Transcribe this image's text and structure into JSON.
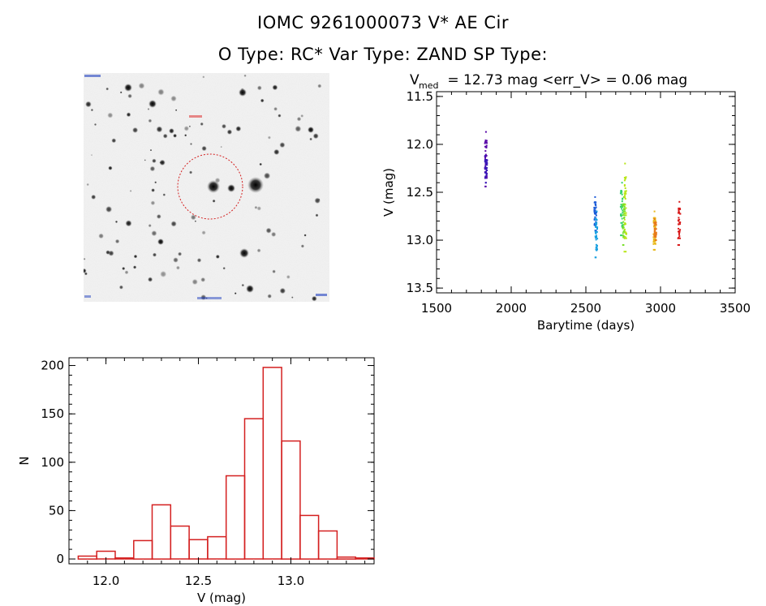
{
  "header": {
    "title": "IOMC 9261000073    V* AE Cir",
    "subtitle": "O Type: RC*  Var Type: ZAND  SP Type:"
  },
  "image_panel": {
    "description_labels": []
  },
  "chart_data": [
    {
      "type": "scatter",
      "title_main": "V",
      "title_sub": "med",
      "title_rest": " = 12.73 mag <err_V> = 0.06 mag",
      "xlabel": "Barytime (days)",
      "ylabel": "V (mag)",
      "xlim": [
        1500,
        3500
      ],
      "ylim": [
        13.55,
        11.45
      ],
      "xticks": [
        "1500",
        "2000",
        "2500",
        "3000",
        "3500"
      ],
      "yticks": [
        "11.5",
        "12.0",
        "12.5",
        "13.0",
        "13.5"
      ],
      "grid": false,
      "series": [
        {
          "x_center": 1830,
          "y_min": 12.44,
          "y_max": 11.87,
          "color": "#5a0aa8"
        },
        {
          "x_center": 1832,
          "y_min": 12.4,
          "y_max": 12.12,
          "color": "#3a18b8"
        },
        {
          "x_center": 2563,
          "y_min": 12.9,
          "y_max": 12.55,
          "color": "#1a5ad8"
        },
        {
          "x_center": 2570,
          "y_min": 13.18,
          "y_max": 12.7,
          "color": "#19a0e0"
        },
        {
          "x_center": 2740,
          "y_min": 12.95,
          "y_max": 12.4,
          "color": "#35d26a"
        },
        {
          "x_center": 2755,
          "y_min": 13.05,
          "y_max": 12.55,
          "color": "#78e02a"
        },
        {
          "x_center": 2765,
          "y_min": 13.12,
          "y_max": 12.2,
          "color": "#b9e61a"
        },
        {
          "x_center": 2960,
          "y_min": 13.1,
          "y_max": 12.7,
          "color": "#e8b81a"
        },
        {
          "x_center": 2965,
          "y_min": 13.0,
          "y_max": 12.78,
          "color": "#e87a1a"
        },
        {
          "x_center": 3125,
          "y_min": 13.05,
          "y_max": 12.6,
          "color": "#d81a1a"
        }
      ]
    },
    {
      "type": "bar",
      "xlabel": "V (mag)",
      "ylabel": "N",
      "xlim": [
        11.8,
        13.45
      ],
      "ylim": [
        -5,
        208
      ],
      "xticks": [
        "12.0",
        "12.5",
        "13.0"
      ],
      "yticks": [
        "0",
        "50",
        "100",
        "150",
        "200"
      ],
      "bin_width": 0.1,
      "bin_edges_start": 11.85,
      "values": [
        3,
        8,
        1,
        19,
        56,
        34,
        20,
        23,
        86,
        145,
        198,
        122,
        45,
        29,
        2,
        1
      ],
      "color": "#d42020"
    }
  ]
}
